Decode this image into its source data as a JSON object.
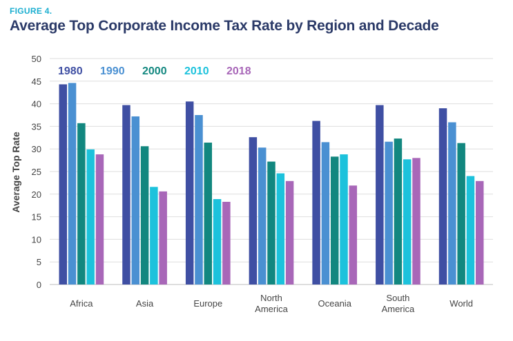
{
  "figure": {
    "label": "FIGURE 4.",
    "title": "Average Top Corporate Income Tax Rate by Region and Decade"
  },
  "chart_data": {
    "type": "bar",
    "title": "Average Top Corporate Income Tax Rate by Region and Decade",
    "xlabel": "",
    "ylabel": "Average Top Rate",
    "ylim": [
      0,
      50
    ],
    "yticks": [
      0,
      5,
      10,
      15,
      20,
      25,
      30,
      35,
      40,
      45,
      50
    ],
    "grid": true,
    "legend_position": "top-left",
    "categories": [
      [
        "Africa"
      ],
      [
        "Asia"
      ],
      [
        "Europe"
      ],
      [
        "North",
        "America"
      ],
      [
        "Oceania"
      ],
      [
        "South",
        "America"
      ],
      [
        "World"
      ]
    ],
    "series": [
      {
        "name": "1980",
        "color": "#3f4fa3",
        "values": [
          44.3,
          39.7,
          40.5,
          32.6,
          36.2,
          39.7,
          39.0
        ]
      },
      {
        "name": "1990",
        "color": "#4a90d2",
        "values": [
          44.6,
          37.2,
          37.5,
          30.3,
          31.5,
          31.6,
          35.9
        ]
      },
      {
        "name": "2000",
        "color": "#12877f",
        "values": [
          35.7,
          30.6,
          31.4,
          27.2,
          28.3,
          32.3,
          31.3
        ]
      },
      {
        "name": "2010",
        "color": "#1cc2dc",
        "values": [
          29.9,
          21.6,
          18.9,
          24.6,
          28.8,
          27.7,
          24.0
        ]
      },
      {
        "name": "2018",
        "color": "#a867b8",
        "values": [
          28.8,
          20.6,
          18.3,
          22.9,
          21.9,
          28.0,
          22.9
        ]
      }
    ]
  }
}
